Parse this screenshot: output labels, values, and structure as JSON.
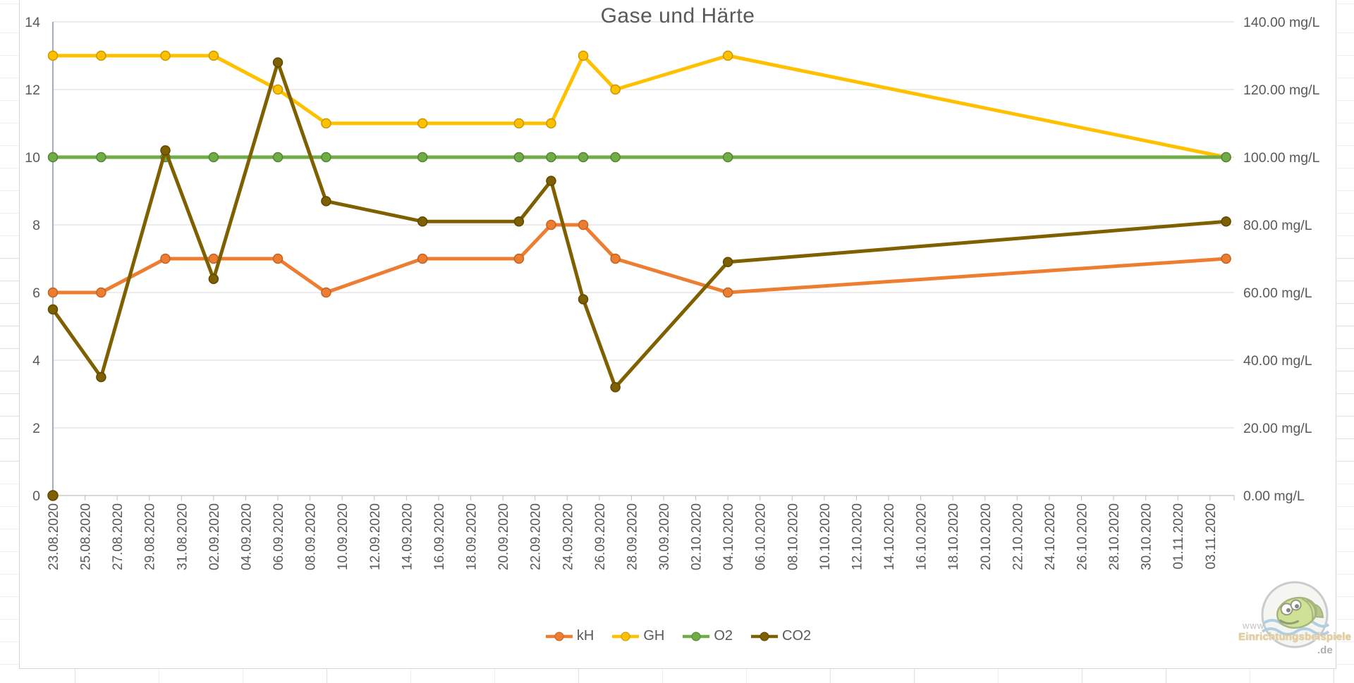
{
  "chart_data": {
    "type": "line",
    "title": "Gase und Härte",
    "grid": "horizontal",
    "legend_position": "bottom",
    "x_axis": {
      "kind": "date",
      "tick_interval_days": 2,
      "tick_labels": [
        "23.08.2020",
        "25.08.2020",
        "27.08.2020",
        "29.08.2020",
        "31.08.2020",
        "02.09.2020",
        "04.09.2020",
        "06.09.2020",
        "08.09.2020",
        "10.09.2020",
        "12.09.2020",
        "14.09.2020",
        "16.09.2020",
        "18.09.2020",
        "20.09.2020",
        "22.09.2020",
        "24.09.2020",
        "26.09.2020",
        "28.09.2020",
        "30.09.2020",
        "02.10.2020",
        "04.10.2020",
        "06.10.2020",
        "08.10.2020",
        "10.10.2020",
        "12.10.2020",
        "14.10.2020",
        "16.10.2020",
        "18.10.2020",
        "20.10.2020",
        "22.10.2020",
        "24.10.2020",
        "26.10.2020",
        "28.10.2020",
        "30.10.2020",
        "01.11.2020",
        "03.11.2020"
      ]
    },
    "y_axis_left": {
      "min": 0,
      "max": 14,
      "ticks": [
        14,
        12,
        10,
        8,
        6,
        4,
        2,
        0
      ]
    },
    "y_axis_right": {
      "min": 0,
      "max": 140,
      "unit": "mg/L",
      "scale_factor_vs_left": 10,
      "tick_labels": [
        "140.00 mg/L",
        "120.00 mg/L",
        "100.00 mg/L",
        "80.00 mg/L",
        "60.00 mg/L",
        "40.00 mg/L",
        "20.00 mg/L",
        "0.00 mg/L"
      ]
    },
    "dates": [
      "23.08.2020",
      "26.08.2020",
      "30.08.2020",
      "02.09.2020",
      "06.09.2020",
      "09.09.2020",
      "15.09.2020",
      "21.09.2020",
      "23.09.2020",
      "25.09.2020",
      "27.09.2020",
      "04.10.2020",
      "04.11.2020"
    ],
    "day_offsets": [
      0,
      3,
      7,
      10,
      14,
      17,
      23,
      29,
      31,
      33,
      35,
      42,
      73
    ],
    "series": [
      {
        "name": "kH",
        "color": "#ED7D31",
        "marker_edge": "#c06225",
        "values": [
          6,
          6,
          7,
          7,
          7,
          6,
          7,
          7,
          8,
          8,
          7,
          6,
          7
        ]
      },
      {
        "name": "GH",
        "color": "#FFC000",
        "marker_edge": "#c79600",
        "values": [
          13,
          13,
          13,
          13,
          12,
          11,
          11,
          11,
          11,
          13,
          12,
          13,
          10
        ]
      },
      {
        "name": "O2",
        "color": "#70AD47",
        "marker_edge": "#548235",
        "values": [
          10,
          10,
          10,
          10,
          10,
          10,
          10,
          10,
          10,
          10,
          10,
          10,
          10
        ]
      },
      {
        "name": "CO2",
        "color": "#7F6000",
        "marker_edge": "#5e4700",
        "values": [
          5.5,
          3.5,
          10.2,
          6.4,
          12.8,
          8.7,
          8.1,
          8.1,
          9.3,
          5.8,
          3.2,
          6.9,
          8.1
        ]
      }
    ],
    "extra_points": [
      {
        "series": "CO2",
        "date": "23.08.2020",
        "day_offset": 0,
        "value": 0
      }
    ],
    "style": {
      "gridline": "#d9d9d9",
      "value_axis_line": "#8094ac",
      "category_axis_line": "#bfbfbf",
      "text": "#595959"
    }
  },
  "watermark": {
    "line1": "www.",
    "line2": "Einrichtungsbeispiele",
    "line3": ".de"
  }
}
